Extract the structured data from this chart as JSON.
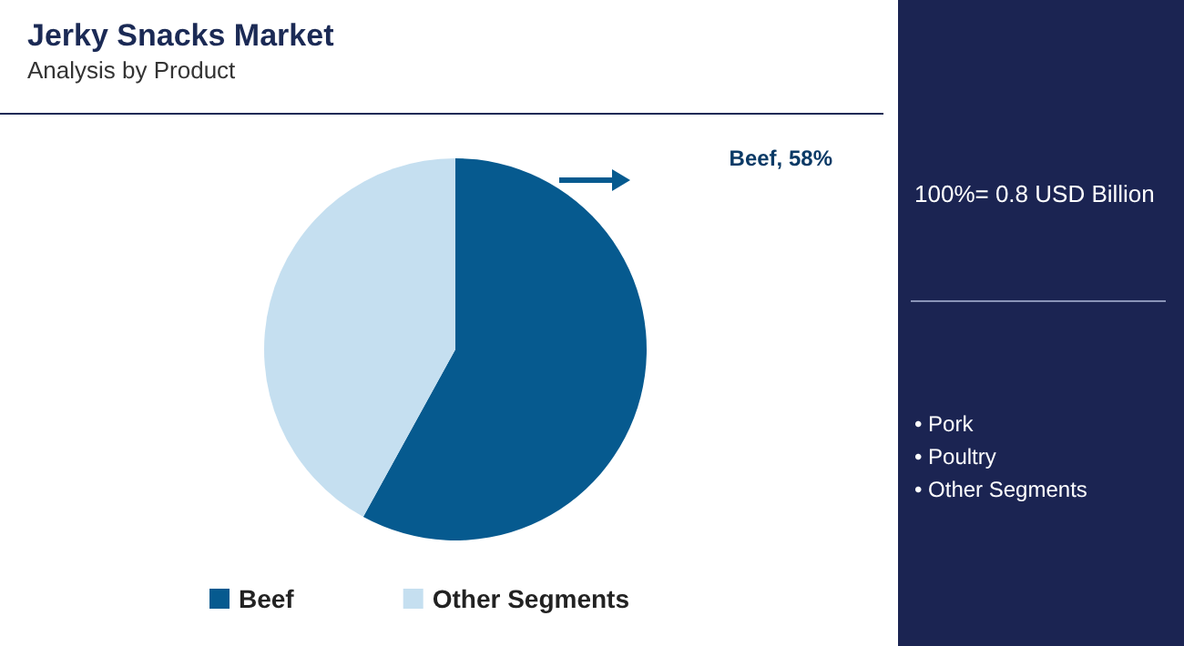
{
  "chart_data": {
    "type": "pie",
    "title": "Jerky Snacks Market",
    "subtitle": "Analysis by Product",
    "categories": [
      "Beef",
      "Other Segments"
    ],
    "values": [
      58,
      42
    ],
    "colors": [
      "#065a8f",
      "#c5dff0"
    ],
    "value_labels": [
      "Beef, 58%",
      null
    ],
    "legend": "bottom",
    "annotations": [
      "100%= 0.8 USD Billion",
      "• Pork",
      "• Poultry",
      "• Other Segments"
    ]
  }
}
